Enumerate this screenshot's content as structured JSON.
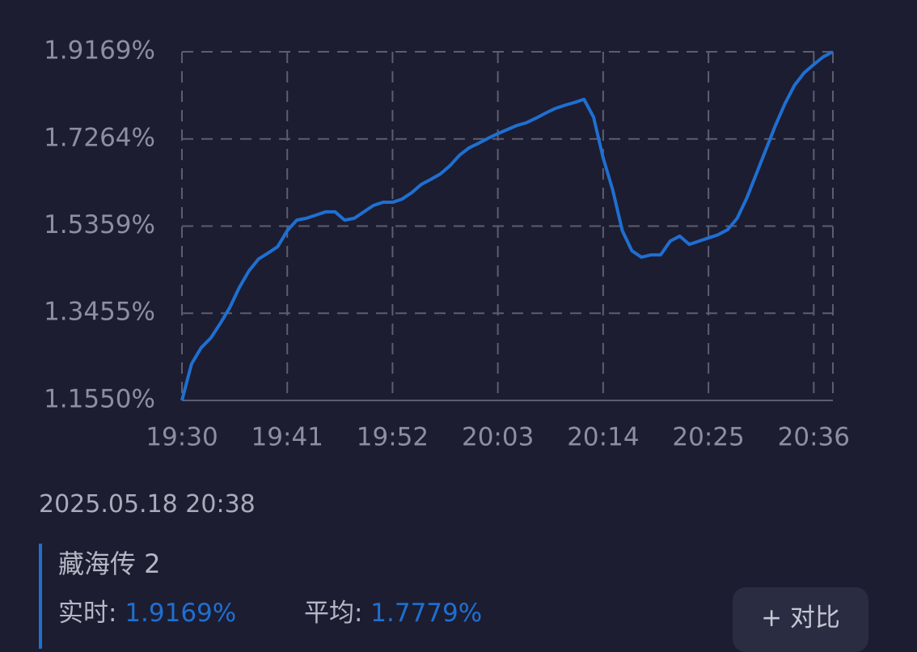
{
  "chart_data": {
    "type": "line",
    "x": [
      "19:30",
      "19:31",
      "19:32",
      "19:33",
      "19:34",
      "19:35",
      "19:36",
      "19:37",
      "19:38",
      "19:39",
      "19:40",
      "19:41",
      "19:42",
      "19:43",
      "19:44",
      "19:45",
      "19:46",
      "19:47",
      "19:48",
      "19:49",
      "19:50",
      "19:51",
      "19:52",
      "19:53",
      "19:54",
      "19:55",
      "19:56",
      "19:57",
      "19:58",
      "19:59",
      "20:00",
      "20:01",
      "20:02",
      "20:03",
      "20:04",
      "20:05",
      "20:06",
      "20:07",
      "20:08",
      "20:09",
      "20:10",
      "20:11",
      "20:12",
      "20:13",
      "20:14",
      "20:15",
      "20:16",
      "20:17",
      "20:18",
      "20:19",
      "20:20",
      "20:21",
      "20:22",
      "20:23",
      "20:24",
      "20:25",
      "20:26",
      "20:27",
      "20:28",
      "20:29",
      "20:30",
      "20:31",
      "20:32",
      "20:33",
      "20:34",
      "20:35",
      "20:36",
      "20:37",
      "20:38"
    ],
    "series": [
      {
        "color": "#1f6fd1",
        "values": [
          1.155,
          1.2345,
          1.27,
          1.291,
          1.323,
          1.358,
          1.402,
          1.438,
          1.464,
          1.477,
          1.491,
          1.526,
          1.549,
          1.553,
          1.56,
          1.567,
          1.567,
          1.549,
          1.553,
          1.567,
          1.581,
          1.588,
          1.588,
          1.595,
          1.609,
          1.627,
          1.638,
          1.65,
          1.668,
          1.691,
          1.707,
          1.717,
          1.728,
          1.738,
          1.747,
          1.756,
          1.762,
          1.772,
          1.783,
          1.793,
          1.8,
          1.806,
          1.813,
          1.774,
          1.685,
          1.615,
          1.526,
          1.482,
          1.468,
          1.473,
          1.473,
          1.503,
          1.514,
          1.496,
          1.503,
          1.51,
          1.517,
          1.528,
          1.553,
          1.597,
          1.65,
          1.703,
          1.756,
          1.804,
          1.844,
          1.871,
          1.889,
          1.906,
          1.9169
        ]
      }
    ],
    "xticks": [
      "19:30",
      "19:41",
      "19:52",
      "20:03",
      "20:14",
      "20:25",
      "20:36"
    ],
    "ylim": [
      1.155,
      1.9169
    ],
    "yticks": [
      {
        "value": 1.155,
        "label": "1.1550%"
      },
      {
        "value": 1.3455,
        "label": "1.3455%"
      },
      {
        "value": 1.5359,
        "label": "1.5359%"
      },
      {
        "value": 1.7264,
        "label": "1.7264%"
      },
      {
        "value": 1.9169,
        "label": "1.9169%"
      }
    ],
    "grid": true
  },
  "info": {
    "timestamp": "2025.05.18 20:38",
    "series_name": "藏海传 2",
    "realtime_label": "实时:",
    "realtime_value": "1.9169%",
    "average_label": "平均:",
    "average_value": "1.7779%",
    "compare_button": "+ 对比"
  }
}
